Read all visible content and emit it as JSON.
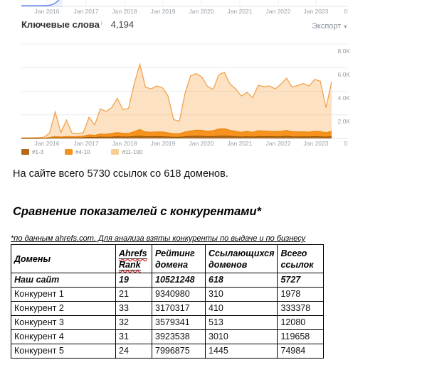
{
  "keywords_panel": {
    "title": "Ключевые слова",
    "info_icon": "i",
    "value": "4,194",
    "export_label": "Экспорт",
    "caret": "▾"
  },
  "paragraph": "На сайте всего 5730 ссылок со 618 доменов.",
  "heading": "Сравнение показателей с конкурентами*",
  "footnote": "*по данным ahrefs.com. Для анализа взяты конкуренты по выдаче и по бизнесу",
  "table": {
    "headers": [
      "Домены",
      "Ahrefs Rank",
      "Рейтинг домена",
      "Ссылающихся доменов",
      "Всего ссылок"
    ],
    "rows": [
      [
        "Наш сайт",
        "19",
        "10521248",
        "618",
        "5727"
      ],
      [
        "Конкурент 1",
        "21",
        "9340980",
        "310",
        "1978"
      ],
      [
        "Конкурент 2",
        "33",
        "3170317",
        "410",
        "333378"
      ],
      [
        "Конкурент 3",
        "32",
        "3579341",
        "513",
        "12080"
      ],
      [
        "Конкурент 4",
        "31",
        "3923538",
        "3010",
        "119658"
      ],
      [
        "Конкурент 5",
        "24",
        "7996875",
        "1445",
        "74984"
      ]
    ]
  },
  "chart_data": {
    "type": "area",
    "title": "Ключевые слова",
    "current_value": 4194,
    "stacked": true,
    "x_labels": [
      "Jan 2016",
      "Jan 2017",
      "Jan 2018",
      "Jan 2019",
      "Jan 2020",
      "Jan 2021",
      "Jan 2022",
      "Jan 2023"
    ],
    "y_ticks": [
      "8.0K",
      "6.0K",
      "4.0K",
      "2.0K"
    ],
    "zero_label": "0",
    "ylim": [
      0,
      8000
    ],
    "legend_position": "bottom",
    "grid": true,
    "mini_top_chart": {
      "note": "bottom sliver of previous blue line chart",
      "color": "#6b8ff2"
    },
    "legend": [
      {
        "label": "#1-3",
        "color": "#b06a1a"
      },
      {
        "label": "#4-10",
        "color": "#f6921e"
      },
      {
        "label": "#11-100",
        "color": "#f9cf96"
      }
    ],
    "series": [
      {
        "name": "#1-3",
        "color": "#8f5410",
        "fill": "#b06a1a",
        "values": [
          0,
          0,
          0,
          0,
          5,
          25,
          50,
          40,
          55,
          50,
          55,
          65,
          100,
          85,
          120,
          105,
          120,
          150,
          125,
          125,
          160,
          200,
          150,
          150,
          155,
          150,
          125,
          100,
          100,
          150,
          180,
          200,
          185,
          155,
          155,
          200,
          205,
          185,
          150,
          125,
          150,
          125,
          155,
          150,
          150,
          145,
          150,
          180,
          145,
          135,
          145,
          135,
          155,
          145,
          120,
          150
        ]
      },
      {
        "name": "#4-10",
        "color": "#ee8612",
        "fill": "#f6921e",
        "values": [
          0,
          0,
          0,
          0,
          10,
          60,
          120,
          80,
          110,
          100,
          110,
          140,
          200,
          180,
          260,
          250,
          300,
          350,
          300,
          300,
          420,
          560,
          400,
          380,
          400,
          400,
          350,
          300,
          300,
          400,
          450,
          500,
          500,
          450,
          500,
          600,
          620,
          500,
          450,
          400,
          450,
          400,
          500,
          480,
          460,
          430,
          450,
          500,
          430,
          410,
          420,
          400,
          450,
          430,
          360,
          450
        ]
      },
      {
        "name": "#11-100",
        "color": "#f2a24f",
        "fill": "rgba(247,166,70,0.33)",
        "values": [
          50,
          50,
          60,
          70,
          100,
          450,
          2250,
          500,
          1550,
          450,
          400,
          500,
          1800,
          1150,
          2500,
          2300,
          2600,
          3400,
          2450,
          2550,
          4600,
          6300,
          4350,
          4200,
          4450,
          4300,
          3600,
          1600,
          1450,
          3800,
          5300,
          5500,
          5200,
          4400,
          4150,
          5400,
          5600,
          4600,
          4200,
          3600,
          3900,
          3450,
          4500,
          4400,
          4450,
          4200,
          4600,
          5100,
          4350,
          4500,
          4650,
          4450,
          5000,
          4850,
          2600,
          4800
        ],
        "values_are_totals": true
      }
    ]
  }
}
